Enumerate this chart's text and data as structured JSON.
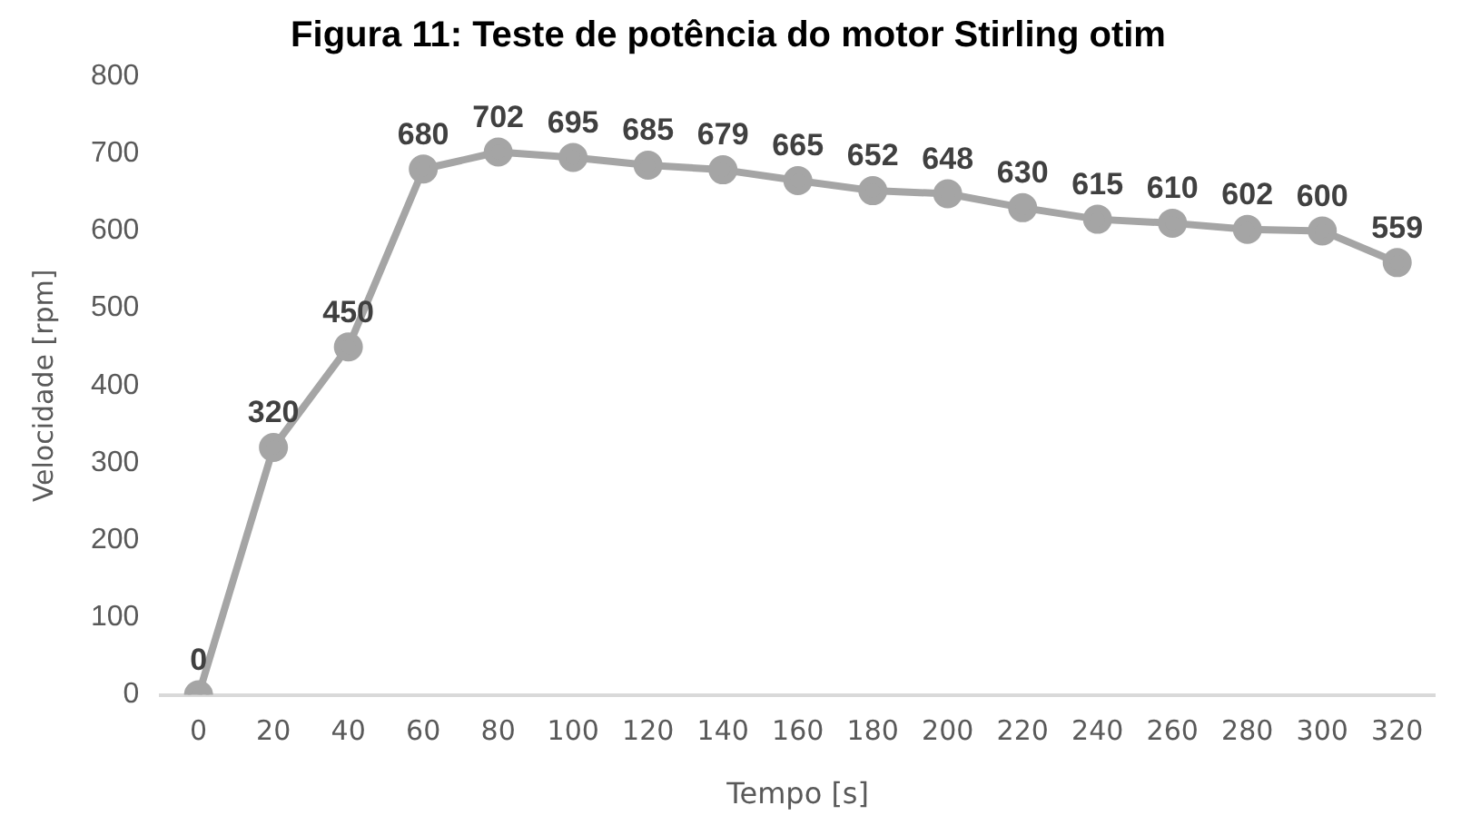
{
  "chart_data": {
    "type": "line",
    "title": "Figura 11: Teste de potência do motor Stirling otim",
    "xlabel": "Tempo [s]",
    "ylabel": "Velocidade [rpm]",
    "categories": [
      "0",
      "20",
      "40",
      "60",
      "80",
      "100",
      "120",
      "140",
      "160",
      "180",
      "200",
      "220",
      "240",
      "260",
      "280",
      "300",
      "320"
    ],
    "series": [
      {
        "color": "#a5a5a5",
        "values": [
          0,
          320,
          450,
          680,
          702,
          695,
          685,
          679,
          665,
          652,
          648,
          630,
          615,
          610,
          602,
          600,
          559
        ]
      }
    ],
    "ylim": [
      0,
      800
    ],
    "yticks": [
      0,
      100,
      200,
      300,
      400,
      500,
      600,
      700,
      800
    ],
    "grid": false,
    "legend": false,
    "marker": "circle",
    "line_style": "solid",
    "data_labels": true
  }
}
